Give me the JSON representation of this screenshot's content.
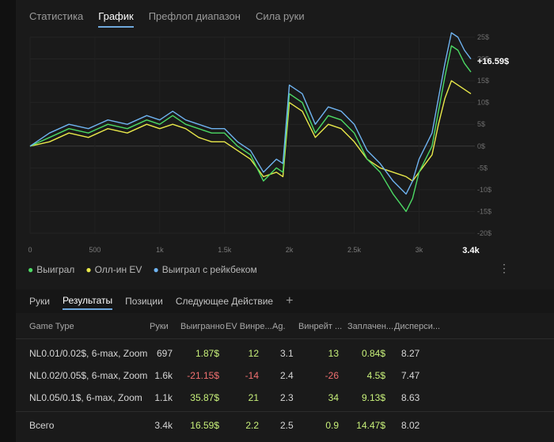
{
  "top_tabs": [
    "Статистика",
    "График",
    "Префлоп диапазон",
    "Сила руки"
  ],
  "active_top_tab": 1,
  "chart_data": {
    "type": "line",
    "x_ticks": [
      "0",
      "500",
      "1k",
      "1.5k",
      "2k",
      "2.5k",
      "3k"
    ],
    "x_end_label": "3.4k",
    "y_ticks": [
      "25$",
      "20$",
      "15$",
      "10$",
      "5$",
      "0$",
      "-5$",
      "-10$",
      "-15$",
      "-20$"
    ],
    "ylim": [
      -20,
      25
    ],
    "xlim": [
      0,
      3400
    ],
    "end_value_label": "+16.59$",
    "series": [
      {
        "name": "Выиграл",
        "color": "#4cd964",
        "x": [
          0,
          150,
          300,
          450,
          600,
          750,
          900,
          1000,
          1100,
          1200,
          1300,
          1400,
          1500,
          1600,
          1700,
          1800,
          1900,
          1950,
          2000,
          2100,
          2200,
          2300,
          2400,
          2500,
          2600,
          2700,
          2800,
          2900,
          2950,
          3000,
          3050,
          3100,
          3150,
          3200,
          3250,
          3300,
          3350,
          3400
        ],
        "values": [
          0,
          2,
          4,
          3,
          5,
          4,
          6,
          5,
          7,
          5,
          4,
          3,
          3,
          0,
          -2,
          -8,
          -5,
          -6,
          12,
          10,
          3,
          7,
          6,
          3,
          -3,
          -6,
          -11,
          -15,
          -12,
          -6,
          -3,
          0,
          8,
          16,
          23,
          22,
          19,
          17
        ]
      },
      {
        "name": "Олл-ин EV",
        "color": "#e8e84a",
        "x": [
          0,
          150,
          300,
          450,
          600,
          750,
          900,
          1000,
          1100,
          1200,
          1300,
          1400,
          1500,
          1600,
          1700,
          1800,
          1900,
          1950,
          2000,
          2100,
          2200,
          2300,
          2400,
          2500,
          2600,
          2700,
          2800,
          2900,
          2950,
          3000,
          3050,
          3100,
          3150,
          3200,
          3250,
          3300,
          3350,
          3400
        ],
        "values": [
          0,
          1,
          3,
          2,
          4,
          3,
          5,
          4,
          5,
          4,
          2,
          1,
          1,
          -1,
          -3,
          -7,
          -6,
          -7,
          10,
          8,
          2,
          5,
          4,
          1,
          -3,
          -5,
          -6,
          -7,
          -8,
          -6,
          -4,
          -2,
          5,
          11,
          15,
          14,
          13,
          12
        ]
      },
      {
        "name": "Выиграл с рейкбеком",
        "color": "#6fb3f0",
        "x": [
          0,
          150,
          300,
          450,
          600,
          750,
          900,
          1000,
          1100,
          1200,
          1300,
          1400,
          1500,
          1600,
          1700,
          1800,
          1900,
          1950,
          2000,
          2100,
          2200,
          2300,
          2400,
          2500,
          2600,
          2700,
          2800,
          2900,
          2950,
          3000,
          3050,
          3100,
          3150,
          3200,
          3250,
          3300,
          3350,
          3400
        ],
        "values": [
          0,
          3,
          5,
          4,
          6,
          5,
          7,
          6,
          8,
          6,
          5,
          4,
          4,
          1,
          -1,
          -6,
          -3,
          -4,
          14,
          12,
          5,
          9,
          8,
          5,
          -1,
          -4,
          -8,
          -11,
          -8,
          -3,
          0,
          3,
          11,
          19,
          26,
          25,
          22,
          20
        ]
      }
    ]
  },
  "legend": [
    "Выиграл",
    "Олл-ин EV",
    "Выиграл с рейкбеком"
  ],
  "bottom_tabs": [
    "Руки",
    "Результаты",
    "Позиции",
    "Следующее Действие"
  ],
  "active_bottom_tab": 1,
  "add_tab_icon": "+",
  "kebab_icon": "⋮",
  "table": {
    "headers": [
      "Game Type",
      "Руки",
      "Выигранно",
      "EV Винре...",
      "Ag.",
      "Винрейт ...",
      "Заплачен...",
      "Дисперси..."
    ],
    "rows": [
      {
        "game": "NL0.01/0.02$, 6-max, Zoom",
        "hands": "697",
        "won": "1.87$",
        "ev": "12",
        "ag": "3.1",
        "wr": "13",
        "paid": "0.84$",
        "disp": "8.27",
        "won_sign": "pos",
        "ev_sign": "pos",
        "wr_sign": "pos"
      },
      {
        "game": "NL0.02/0.05$, 6-max, Zoom",
        "hands": "1.6k",
        "won": "-21.15$",
        "ev": "-14",
        "ag": "2.4",
        "wr": "-26",
        "paid": "4.5$",
        "disp": "7.47",
        "won_sign": "neg",
        "ev_sign": "neg",
        "wr_sign": "neg"
      },
      {
        "game": "NL0.05/0.1$, 6-max, Zoom",
        "hands": "1.1k",
        "won": "35.87$",
        "ev": "21",
        "ag": "2.3",
        "wr": "34",
        "paid": "9.13$",
        "disp": "8.63",
        "won_sign": "pos",
        "ev_sign": "pos",
        "wr_sign": "pos"
      }
    ],
    "total": {
      "game": "Всего",
      "hands": "3.4k",
      "won": "16.59$",
      "ev": "2.2",
      "ag": "2.5",
      "wr": "0.9",
      "paid": "14.47$",
      "disp": "8.02",
      "won_sign": "pos",
      "ev_sign": "pos",
      "wr_sign": "pos"
    }
  }
}
